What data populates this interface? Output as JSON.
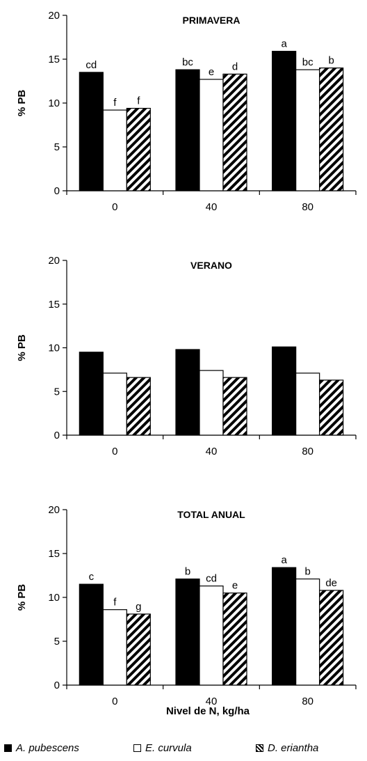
{
  "chart_data": [
    {
      "type": "bar",
      "title": "PRIMAVERA",
      "ylabel": "% PB",
      "xlabel": "",
      "categories": [
        "0",
        "40",
        "80"
      ],
      "ylim": [
        0,
        20
      ],
      "yticks": [
        0,
        5,
        10,
        15,
        20
      ],
      "series": [
        {
          "name": "A. pubescens",
          "values": [
            13.5,
            13.8,
            15.9
          ],
          "labels": [
            "cd",
            "bc",
            "a"
          ]
        },
        {
          "name": "E. curvula",
          "values": [
            9.2,
            12.7,
            13.8
          ],
          "labels": [
            "f",
            "e",
            "bc"
          ]
        },
        {
          "name": "D. eriantha",
          "values": [
            9.4,
            13.3,
            14.0
          ],
          "labels": [
            "f",
            "d",
            "b"
          ]
        }
      ]
    },
    {
      "type": "bar",
      "title": "VERANO",
      "ylabel": "% PB",
      "xlabel": "",
      "categories": [
        "0",
        "40",
        "80"
      ],
      "ylim": [
        0,
        20
      ],
      "yticks": [
        0,
        5,
        10,
        15,
        20
      ],
      "series": [
        {
          "name": "A. pubescens",
          "values": [
            9.5,
            9.8,
            10.1
          ],
          "labels": [
            "",
            "",
            ""
          ]
        },
        {
          "name": "E. curvula",
          "values": [
            7.1,
            7.4,
            7.1
          ],
          "labels": [
            "",
            "",
            ""
          ]
        },
        {
          "name": "D. eriantha",
          "values": [
            6.6,
            6.6,
            6.3
          ],
          "labels": [
            "",
            "",
            ""
          ]
        }
      ]
    },
    {
      "type": "bar",
      "title": "TOTAL ANUAL",
      "ylabel": "% PB",
      "xlabel": "Nivel de N, kg/ha",
      "categories": [
        "0",
        "40",
        "80"
      ],
      "ylim": [
        0,
        20
      ],
      "yticks": [
        0,
        5,
        10,
        15,
        20
      ],
      "series": [
        {
          "name": "A. pubescens",
          "values": [
            11.5,
            12.1,
            13.4
          ],
          "labels": [
            "c",
            "b",
            "a"
          ]
        },
        {
          "name": "E. curvula",
          "values": [
            8.6,
            11.3,
            12.1
          ],
          "labels": [
            "f",
            "cd",
            "b"
          ]
        },
        {
          "name": "D. eriantha",
          "values": [
            8.1,
            10.5,
            10.8
          ],
          "labels": [
            "g",
            "e",
            "de"
          ]
        }
      ]
    }
  ],
  "legend": {
    "position": "bottom",
    "items": [
      {
        "name": "A. pubescens",
        "fill": "solid-black"
      },
      {
        "name": "E. curvula",
        "fill": "white"
      },
      {
        "name": "D. eriantha",
        "fill": "hatched"
      }
    ]
  },
  "colors": {
    "bar_black": "#000000",
    "bar_white": "#ffffff",
    "axis": "#000000"
  }
}
